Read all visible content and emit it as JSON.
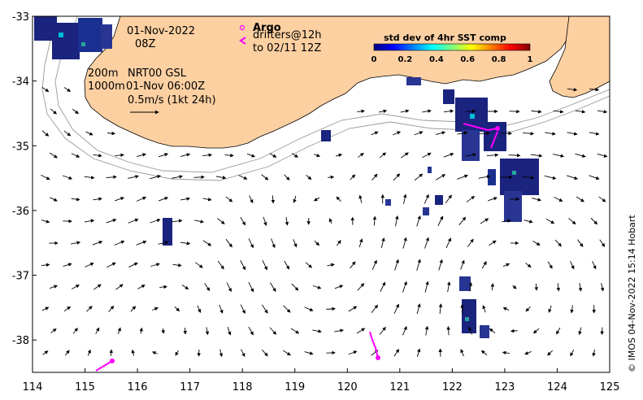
{
  "map": {
    "lon_range": [
      114,
      125
    ],
    "lat_range": [
      -38.5,
      -33
    ],
    "lon_ticks": [
      "114",
      "115",
      "116",
      "117",
      "118",
      "119",
      "120",
      "121",
      "122",
      "123",
      "124",
      "125"
    ],
    "lat_ticks": [
      "-33",
      "-34",
      "-35",
      "-36",
      "-37",
      "-38"
    ],
    "land_color": "#fdd0a2",
    "sst_color_dark": "#1a237e",
    "argo_color": "#ff00ff"
  },
  "annotations": {
    "date": "01-Nov-2022",
    "hour": "08Z",
    "isobath_200": "200m",
    "isobath_1000": "1000m",
    "product": "NRT00 GSL",
    "product_time": "01-Nov 06:00Z",
    "scale_label": "0.5m/s (1kt 24h)"
  },
  "legend": {
    "argo_title": "Argo",
    "drifters_line1": "drifters@12h",
    "drifters_line2": "to 02/11 12Z"
  },
  "colorbar": {
    "title": "std dev of 4hr SST comp",
    "labels": [
      "0",
      "0.2",
      "0.4",
      "0.6",
      "0.8",
      "1"
    ]
  },
  "credit": "© IMOS 04-Nov-2022 15:14 Hobart"
}
